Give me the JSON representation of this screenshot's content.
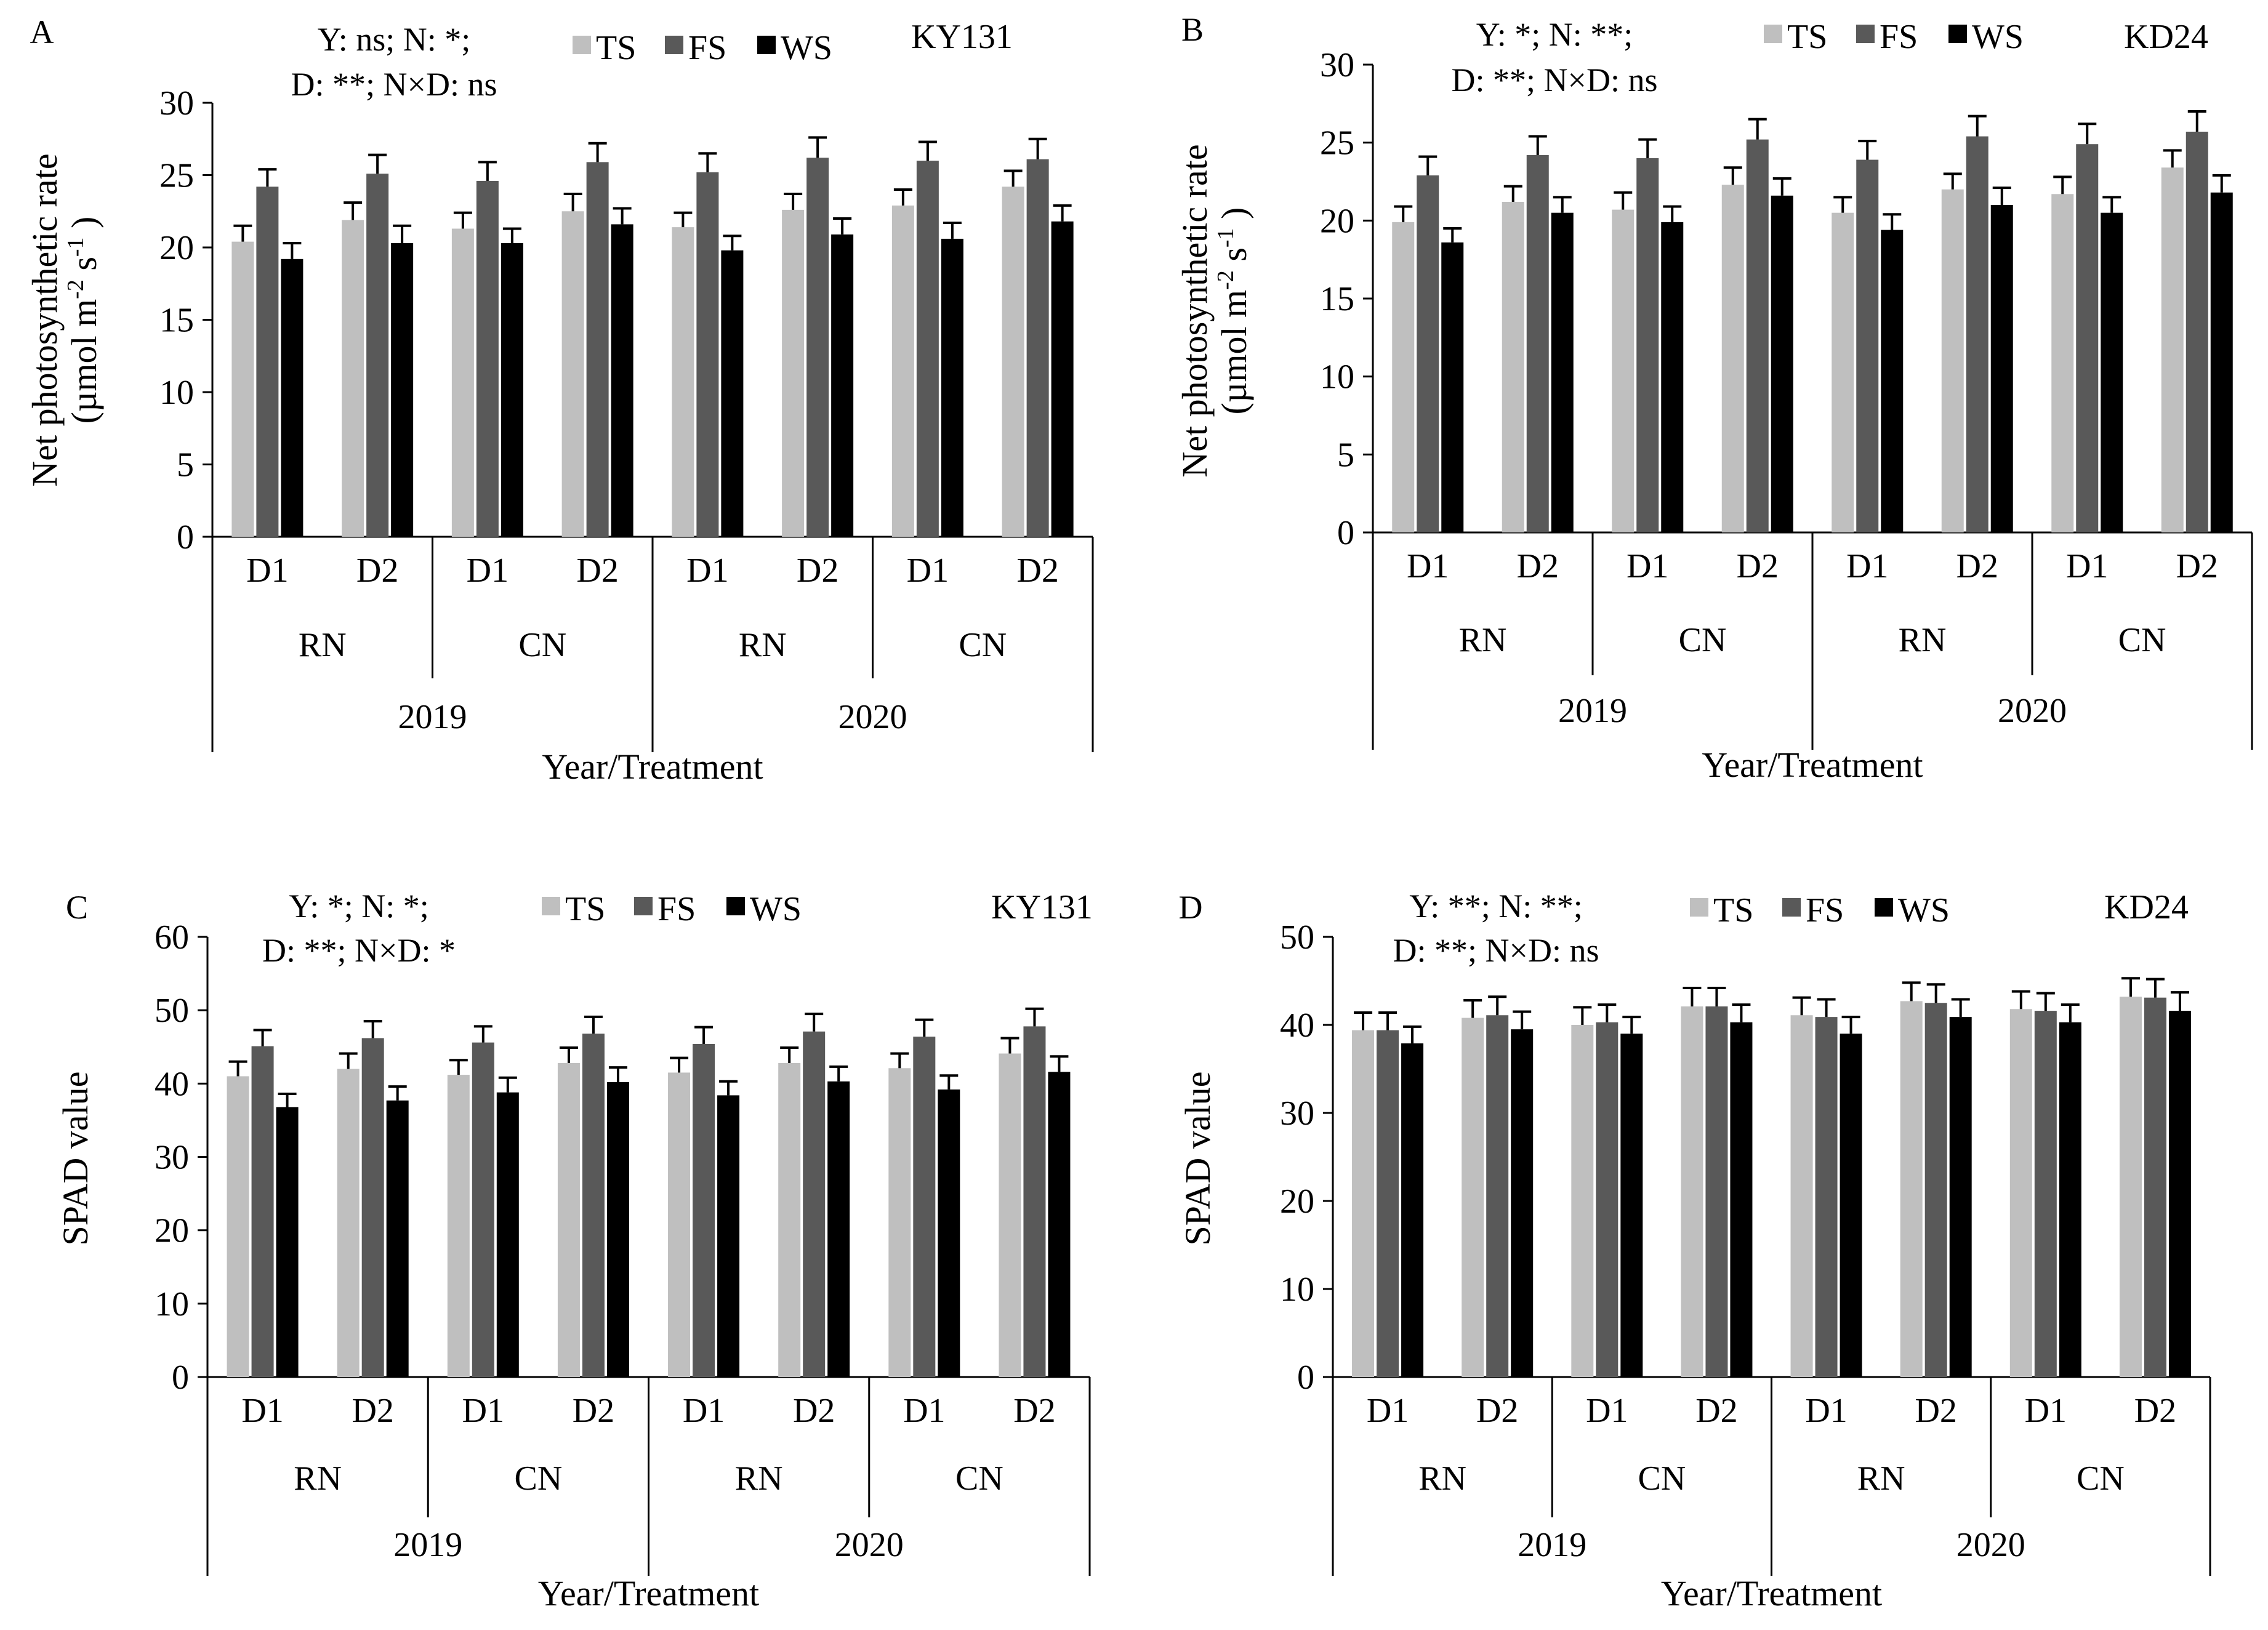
{
  "chart_data": [
    {
      "type": "bar",
      "panel": "A",
      "variety": "KY131",
      "stats": [
        "Y: ns; N: *;",
        "D: **; N×D: ns"
      ],
      "ylabel_line1": "Net photosynthetic rate",
      "ylabel_line2_parts": [
        "(µmol m",
        "-2",
        " s",
        "-1",
        " )"
      ],
      "xlabel": "Year/Treatment",
      "ylim": [
        0,
        30
      ],
      "yticks": [
        0,
        5,
        10,
        15,
        20,
        25,
        30
      ],
      "density_labels": [
        "D1",
        "D2",
        "D1",
        "D2",
        "D1",
        "D2",
        "D1",
        "D2"
      ],
      "nitrogen_labels": [
        "RN",
        "CN",
        "RN",
        "CN"
      ],
      "year_labels": [
        "2019",
        "2020"
      ],
      "series": [
        {
          "name": "TS",
          "color": "#bfbfbf",
          "values": [
            20.4,
            21.9,
            21.3,
            22.5,
            21.4,
            22.6,
            22.9,
            24.2
          ],
          "errors": [
            1.1,
            1.2,
            1.1,
            1.2,
            1.0,
            1.1,
            1.1,
            1.1
          ]
        },
        {
          "name": "FS",
          "color": "#595959",
          "values": [
            24.2,
            25.1,
            24.6,
            25.9,
            25.2,
            26.2,
            26.0,
            26.1
          ],
          "errors": [
            1.2,
            1.3,
            1.3,
            1.3,
            1.3,
            1.4,
            1.3,
            1.4
          ]
        },
        {
          "name": "WS",
          "color": "#000000",
          "values": [
            19.2,
            20.3,
            20.3,
            21.6,
            19.8,
            20.9,
            20.6,
            21.8
          ],
          "errors": [
            1.1,
            1.2,
            1.0,
            1.1,
            1.0,
            1.1,
            1.1,
            1.1
          ]
        }
      ]
    },
    {
      "type": "bar",
      "panel": "B",
      "variety": "KD24",
      "stats": [
        "Y: *; N: **;",
        "D: **; N×D: ns"
      ],
      "ylabel_line1": "Net photosynthetic rate",
      "ylabel_line2_parts": [
        "(µmol m",
        "-2",
        " s",
        "-1",
        " )"
      ],
      "xlabel": "Year/Treatment",
      "ylim": [
        0,
        30
      ],
      "yticks": [
        0,
        5,
        10,
        15,
        20,
        25,
        30
      ],
      "density_labels": [
        "D1",
        "D2",
        "D1",
        "D2",
        "D1",
        "D2",
        "D1",
        "D2"
      ],
      "nitrogen_labels": [
        "RN",
        "CN",
        "RN",
        "CN"
      ],
      "year_labels": [
        "2019",
        "2020"
      ],
      "series": [
        {
          "name": "TS",
          "color": "#bfbfbf",
          "values": [
            19.9,
            21.2,
            20.7,
            22.3,
            20.5,
            22.0,
            21.7,
            23.4
          ],
          "errors": [
            1.0,
            1.0,
            1.1,
            1.1,
            1.0,
            1.0,
            1.1,
            1.1
          ]
        },
        {
          "name": "FS",
          "color": "#595959",
          "values": [
            22.9,
            24.2,
            24.0,
            25.2,
            23.9,
            25.4,
            24.9,
            25.7
          ],
          "errors": [
            1.2,
            1.2,
            1.2,
            1.3,
            1.2,
            1.3,
            1.3,
            1.3
          ]
        },
        {
          "name": "WS",
          "color": "#000000",
          "values": [
            18.6,
            20.5,
            19.9,
            21.6,
            19.4,
            21.0,
            20.5,
            21.8
          ],
          "errors": [
            0.9,
            1.0,
            1.0,
            1.1,
            1.0,
            1.1,
            1.0,
            1.1
          ]
        }
      ]
    },
    {
      "type": "bar",
      "panel": "C",
      "variety": "KY131",
      "stats": [
        "Y: *; N: *;",
        "D: **; N×D: *"
      ],
      "ylabel_line1": "SPAD value",
      "xlabel": "Year/Treatment",
      "ylim": [
        0,
        60
      ],
      "yticks": [
        0,
        10,
        20,
        30,
        40,
        50,
        60
      ],
      "density_labels": [
        "D1",
        "D2",
        "D1",
        "D2",
        "D1",
        "D2",
        "D1",
        "D2"
      ],
      "nitrogen_labels": [
        "RN",
        "CN",
        "RN",
        "CN"
      ],
      "year_labels": [
        "2019",
        "2020"
      ],
      "series": [
        {
          "name": "TS",
          "color": "#bfbfbf",
          "values": [
            41.0,
            42.0,
            41.2,
            42.8,
            41.5,
            42.8,
            42.1,
            44.1
          ],
          "errors": [
            2.0,
            2.1,
            2.0,
            2.1,
            2.0,
            2.1,
            2.0,
            2.1
          ]
        },
        {
          "name": "FS",
          "color": "#595959",
          "values": [
            45.1,
            46.2,
            45.6,
            46.8,
            45.4,
            47.1,
            46.4,
            47.8
          ],
          "errors": [
            2.2,
            2.3,
            2.2,
            2.3,
            2.3,
            2.4,
            2.3,
            2.4
          ]
        },
        {
          "name": "WS",
          "color": "#000000",
          "values": [
            36.8,
            37.7,
            38.8,
            40.2,
            38.4,
            40.3,
            39.2,
            41.6
          ],
          "errors": [
            1.8,
            1.9,
            2.0,
            2.0,
            1.9,
            2.0,
            1.9,
            2.1
          ]
        }
      ]
    },
    {
      "type": "bar",
      "panel": "D",
      "variety": "KD24",
      "stats": [
        "Y: **; N: **;",
        "D: **; N×D: ns"
      ],
      "ylabel_line1": "SPAD value",
      "xlabel": "Year/Treatment",
      "ylim": [
        0,
        50
      ],
      "yticks": [
        0,
        10,
        20,
        30,
        40,
        50
      ],
      "density_labels": [
        "D1",
        "D2",
        "D1",
        "D2",
        "D1",
        "D2",
        "D1",
        "D2"
      ],
      "nitrogen_labels": [
        "RN",
        "CN",
        "RN",
        "CN"
      ],
      "year_labels": [
        "2019",
        "2020"
      ],
      "series": [
        {
          "name": "TS",
          "color": "#bfbfbf",
          "values": [
            39.4,
            40.8,
            40.0,
            42.1,
            41.1,
            42.7,
            41.8,
            43.2
          ],
          "errors": [
            2.0,
            2.0,
            2.0,
            2.1,
            2.0,
            2.1,
            2.0,
            2.1
          ]
        },
        {
          "name": "FS",
          "color": "#595959",
          "values": [
            39.4,
            41.1,
            40.3,
            42.1,
            40.9,
            42.5,
            41.6,
            43.1
          ],
          "errors": [
            2.0,
            2.1,
            2.0,
            2.1,
            2.0,
            2.1,
            2.0,
            2.1
          ]
        },
        {
          "name": "WS",
          "color": "#000000",
          "values": [
            37.9,
            39.5,
            39.0,
            40.3,
            39.0,
            40.9,
            40.3,
            41.6
          ],
          "errors": [
            1.9,
            2.0,
            1.9,
            2.0,
            1.9,
            2.0,
            2.0,
            2.1
          ]
        }
      ]
    }
  ]
}
